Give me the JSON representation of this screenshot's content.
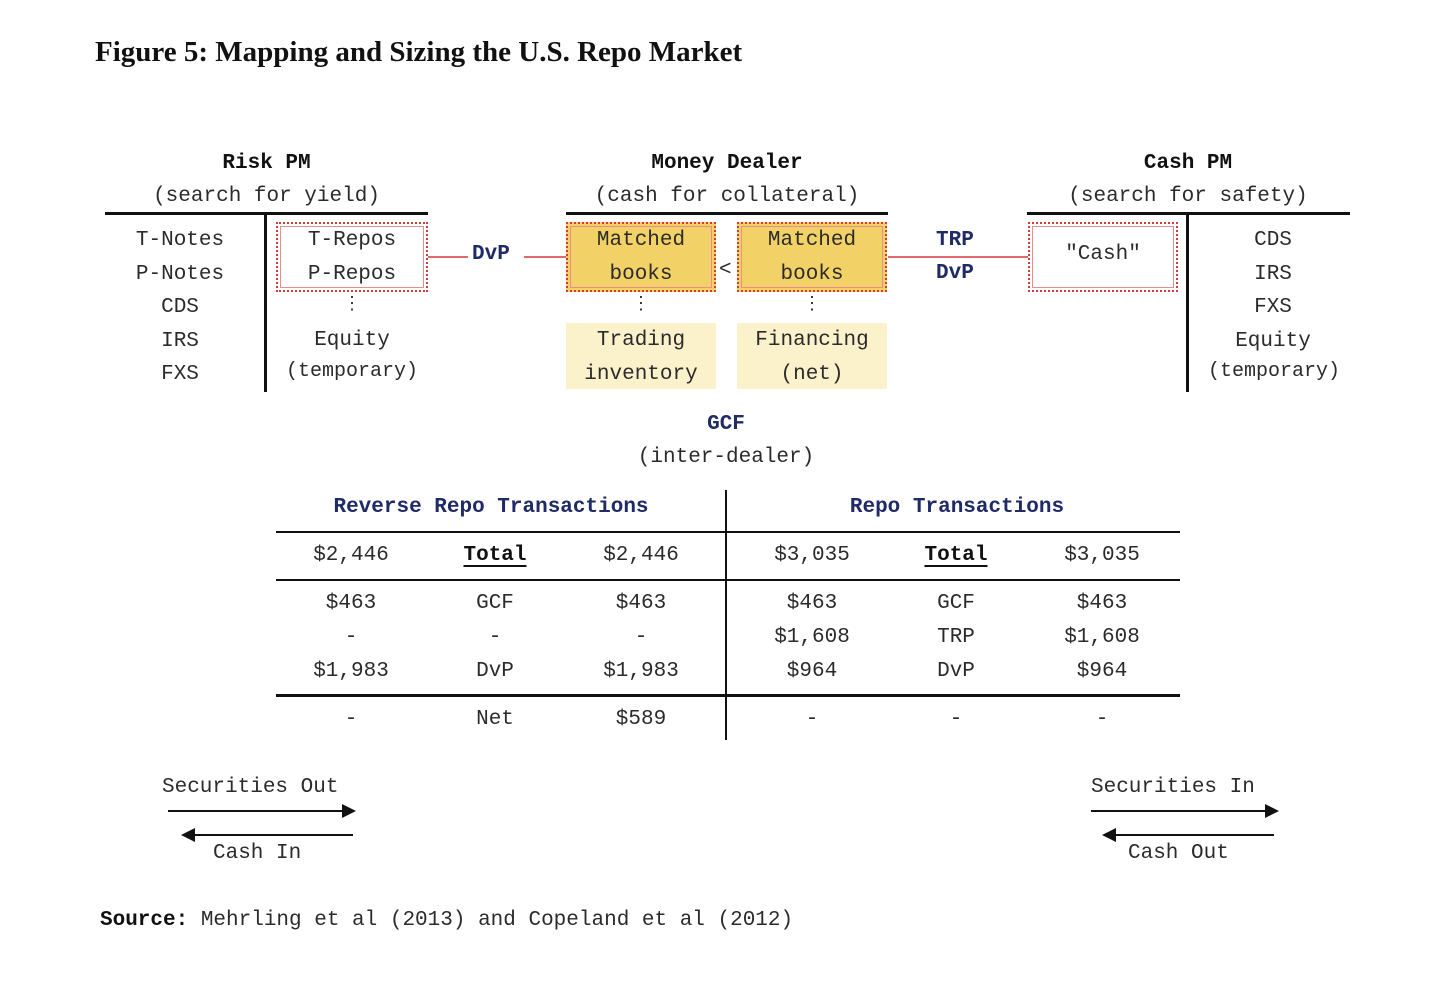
{
  "title": "Figure 5: Mapping and Sizing the U.S. Repo Market",
  "risk_pm": {
    "heading": "Risk PM",
    "subheading": "(search for yield)",
    "left_items": [
      "T-Notes",
      "P-Notes",
      "CDS",
      "IRS",
      "FXS"
    ],
    "repos": [
      "T-Repos",
      "P-Repos"
    ],
    "dots": "⋮",
    "equity": "Equity",
    "temporary": "(temporary)"
  },
  "money_dealer": {
    "heading": "Money Dealer",
    "subheading": "(cash for collateral)",
    "left_box": [
      "Matched",
      "books"
    ],
    "right_box": [
      "Matched",
      "books"
    ],
    "less_than": "<",
    "dots": "⋮",
    "trading": [
      "Trading",
      "inventory"
    ],
    "financing": [
      "Financing",
      "(net)"
    ]
  },
  "cash_pm": {
    "heading": "Cash PM",
    "subheading": "(search for safety)",
    "cash": "\"Cash\"",
    "right_items": [
      "CDS",
      "IRS",
      "FXS",
      "Equity"
    ],
    "temporary": "(temporary)"
  },
  "connectors": {
    "dvp_left": "DvP",
    "trp": "TRP",
    "dvp_right": "DvP"
  },
  "gcf": {
    "label": "GCF",
    "sub": "(inter-dealer)"
  },
  "table": {
    "reverse_header": "Reverse Repo Transactions",
    "repo_header": "Repo Transactions",
    "reverse_total": [
      "$2,446",
      "Total",
      "$2,446"
    ],
    "repo_total": [
      "$3,035",
      "Total",
      "$3,035"
    ],
    "reverse_rows": [
      [
        "$463",
        "GCF",
        "$463"
      ],
      [
        "-",
        "-",
        "-"
      ],
      [
        "$1,983",
        "DvP",
        "$1,983"
      ]
    ],
    "repo_rows": [
      [
        "$463",
        "GCF",
        "$463"
      ],
      [
        "$1,608",
        "TRP",
        "$1,608"
      ],
      [
        "$964",
        "DvP",
        "$964"
      ]
    ],
    "reverse_net": [
      "-",
      "Net",
      "$589"
    ],
    "repo_net": [
      "-",
      "-",
      "-"
    ]
  },
  "legend": {
    "securities_out": "Securities Out",
    "cash_in": "Cash In",
    "securities_in": "Securities In",
    "cash_out": "Cash Out"
  },
  "source": {
    "label": "Source:",
    "text": " Mehrling et al (2013) and Copeland et al (2012)"
  }
}
